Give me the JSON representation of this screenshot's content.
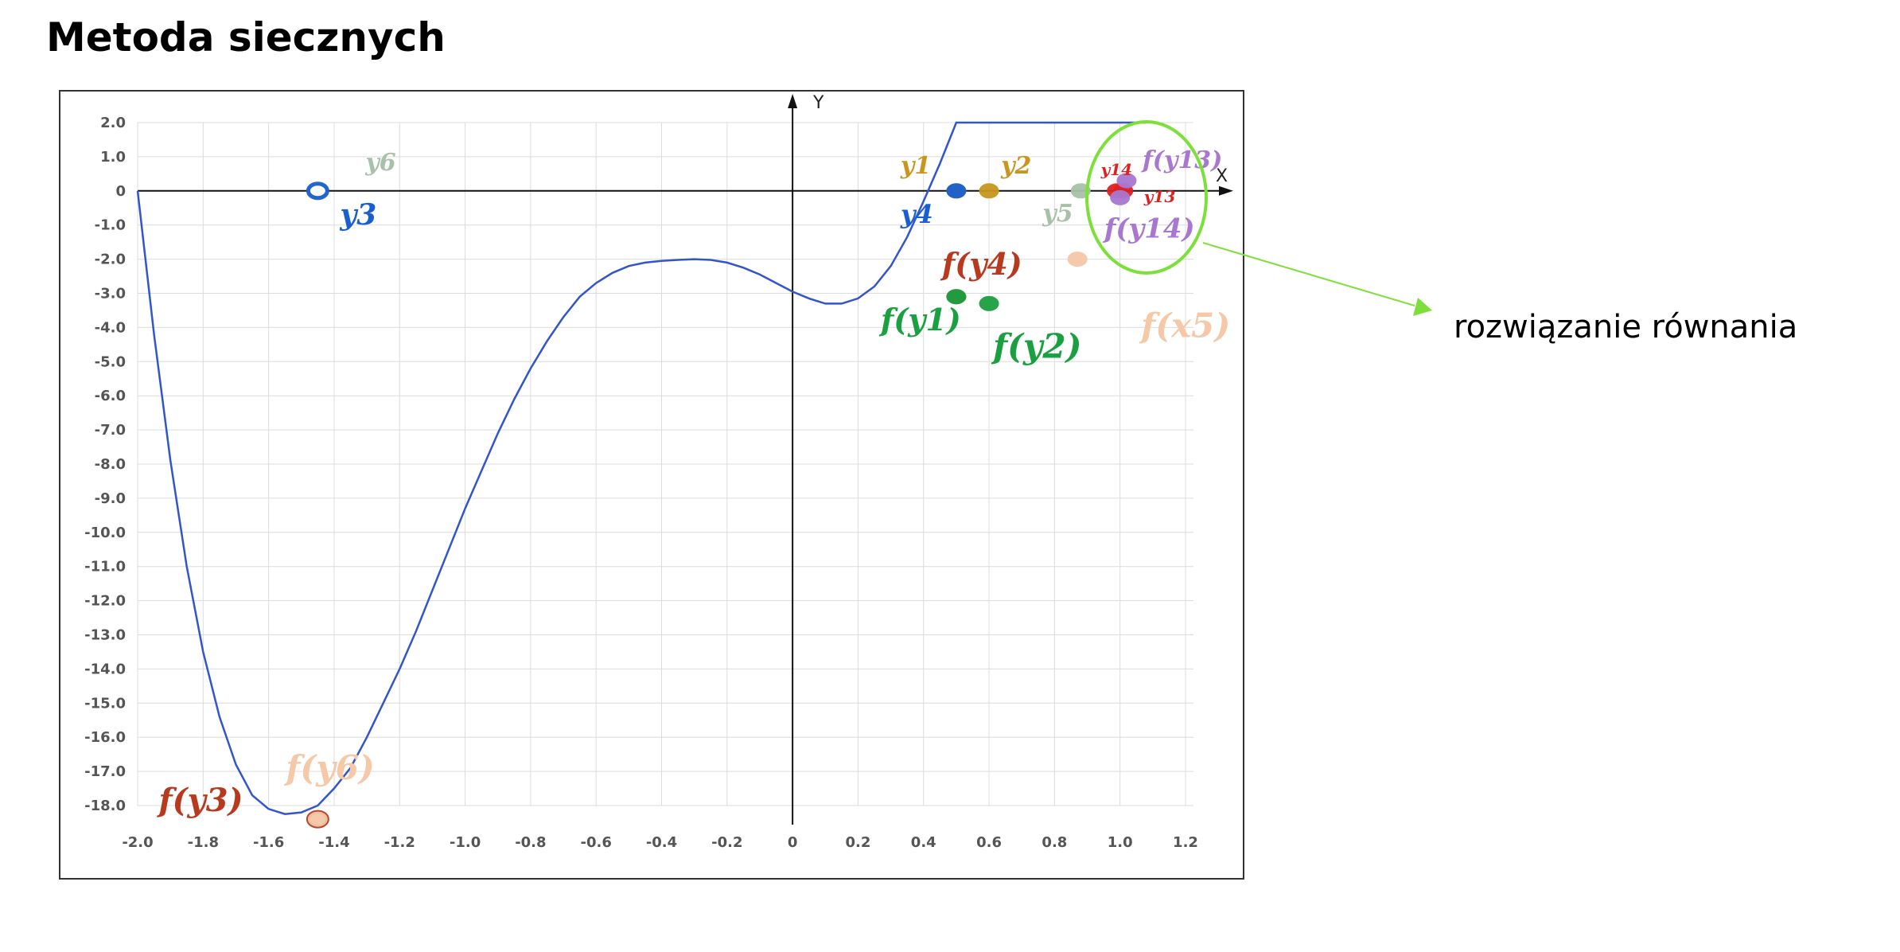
{
  "page": {
    "title": "Metoda siecznych",
    "note": "rozwiązanie równania"
  },
  "chart_data": {
    "type": "line",
    "title": "",
    "xlabel": "X",
    "ylabel": "Y",
    "xlim": [
      -2.0,
      1.2
    ],
    "ylim": [
      -18.0,
      2.0
    ],
    "grid": true,
    "x_ticks": [
      -2.0,
      -1.8,
      -1.6,
      -1.4,
      -1.2,
      -1.0,
      -0.8,
      -0.6,
      -0.4,
      -0.2,
      0,
      0.2,
      0.4,
      0.6,
      0.8,
      1.0,
      1.2
    ],
    "x_tick_labels": [
      "-2.0",
      "-1.8",
      "-1.6",
      "-1.4",
      "-1.2",
      "-1.0",
      "-0.8",
      "-0.6",
      "-0.4",
      "-0.2",
      "0",
      "0.2",
      "0.4",
      "0.6",
      "0.8",
      "1.0",
      "1.2"
    ],
    "y_ticks": [
      2,
      1,
      0,
      -1,
      -2,
      -3,
      -4,
      -5,
      -6,
      -7,
      -8,
      -9,
      -10,
      -11,
      -12,
      -13,
      -14,
      -15,
      -16,
      -17,
      -18
    ],
    "y_tick_labels": [
      "2.0",
      "1.0",
      "0",
      "-1.0",
      "-2.0",
      "-3.0",
      "-4.0",
      "-5.0",
      "-6.0",
      "-7.0",
      "-8.0",
      "-9.0",
      "-10.0",
      "-11.0",
      "-12.0",
      "-13.0",
      "-14.0",
      "-15.0",
      "-16.0",
      "-17.0",
      "-18.0"
    ],
    "curve": {
      "color": "#3355cc",
      "x": [
        -2.0,
        -1.95,
        -1.9,
        -1.85,
        -1.8,
        -1.75,
        -1.7,
        -1.65,
        -1.6,
        -1.55,
        -1.5,
        -1.45,
        -1.4,
        -1.35,
        -1.3,
        -1.25,
        -1.2,
        -1.15,
        -1.1,
        -1.05,
        -1.0,
        -0.95,
        -0.9,
        -0.85,
        -0.8,
        -0.75,
        -0.7,
        -0.65,
        -0.6,
        -0.55,
        -0.5,
        -0.45,
        -0.4,
        -0.35,
        -0.3,
        -0.25,
        -0.2,
        -0.15,
        -0.1,
        -0.05,
        0.0,
        0.05,
        0.1,
        0.15,
        0.2,
        0.25,
        0.3,
        0.35,
        0.4,
        0.45,
        0.5,
        0.55,
        0.6,
        0.65,
        0.7,
        0.75,
        0.8,
        0.85,
        0.9,
        0.95,
        1.0,
        1.05,
        1.08
      ],
      "y": [
        0.0,
        -4.2,
        -7.9,
        -11.0,
        -13.5,
        -15.4,
        -16.8,
        -17.7,
        -18.1,
        -18.25,
        -18.2,
        -18.0,
        -17.5,
        -16.9,
        -16.0,
        -15.0,
        -14.0,
        -12.9,
        -11.7,
        -10.5,
        -9.3,
        -8.2,
        -7.1,
        -6.1,
        -5.2,
        -4.4,
        -3.7,
        -3.1,
        -2.7,
        -2.4,
        -2.2,
        -2.1,
        -2.05,
        -2.02,
        -2.0,
        -2.02,
        -2.1,
        -2.25,
        -2.45,
        -2.7,
        -2.95,
        -3.15,
        -3.3,
        -3.3,
        -3.15,
        -2.8,
        -2.2,
        -1.35,
        -0.3,
        0.8,
        2.0,
        2.0,
        2.0,
        2.0,
        2.0,
        2.0,
        2.0,
        2.0,
        2.0,
        2.0,
        2.0,
        2.0,
        2.0
      ]
    },
    "points": [
      {
        "label": "y6",
        "x": -1.45,
        "y": 0.0,
        "color": "#a8c0a8"
      },
      {
        "label": "y3",
        "x": -1.45,
        "y": 0.0,
        "color": "#1a5fd0"
      },
      {
        "label": "f(y3)",
        "x": -1.45,
        "y": -18.4,
        "color": "#b83a1e"
      },
      {
        "label": "f(y6)",
        "x": -1.45,
        "y": -18.4,
        "color": "#f5c8a8"
      },
      {
        "label": "y1",
        "x": 0.5,
        "y": 0.0,
        "color": "#c8961e"
      },
      {
        "label": "y4",
        "x": 0.5,
        "y": 0.0,
        "color": "#1a5fd0"
      },
      {
        "label": "y2",
        "x": 0.6,
        "y": 0.0,
        "color": "#c8961e"
      },
      {
        "label": "y5",
        "x": 0.88,
        "y": 0.0,
        "color": "#a8c0a8"
      },
      {
        "label": "y14",
        "x": 0.99,
        "y": 0.0,
        "color": "#e02020"
      },
      {
        "label": "y13",
        "x": 1.01,
        "y": 0.0,
        "color": "#e02020"
      },
      {
        "label": "f(y13)",
        "x": 1.02,
        "y": 0.3,
        "color": "#a878d0"
      },
      {
        "label": "f(y14)",
        "x": 1.0,
        "y": -0.2,
        "color": "#a878d0"
      },
      {
        "label": "f(y4)",
        "x": 0.5,
        "y": -3.1,
        "color": "#b83a1e"
      },
      {
        "label": "f(y1)",
        "x": 0.5,
        "y": -3.1,
        "color": "#1aa040"
      },
      {
        "label": "f(y2)",
        "x": 0.6,
        "y": -3.3,
        "color": "#1aa040"
      },
      {
        "label": "f(x5)",
        "x": 0.87,
        "y": -2.0,
        "color": "#f5c8a8"
      }
    ],
    "annotation": {
      "circle_color": "#7de03a",
      "arrow_color": "#7de03a",
      "text": "rozwiązanie równania"
    }
  }
}
